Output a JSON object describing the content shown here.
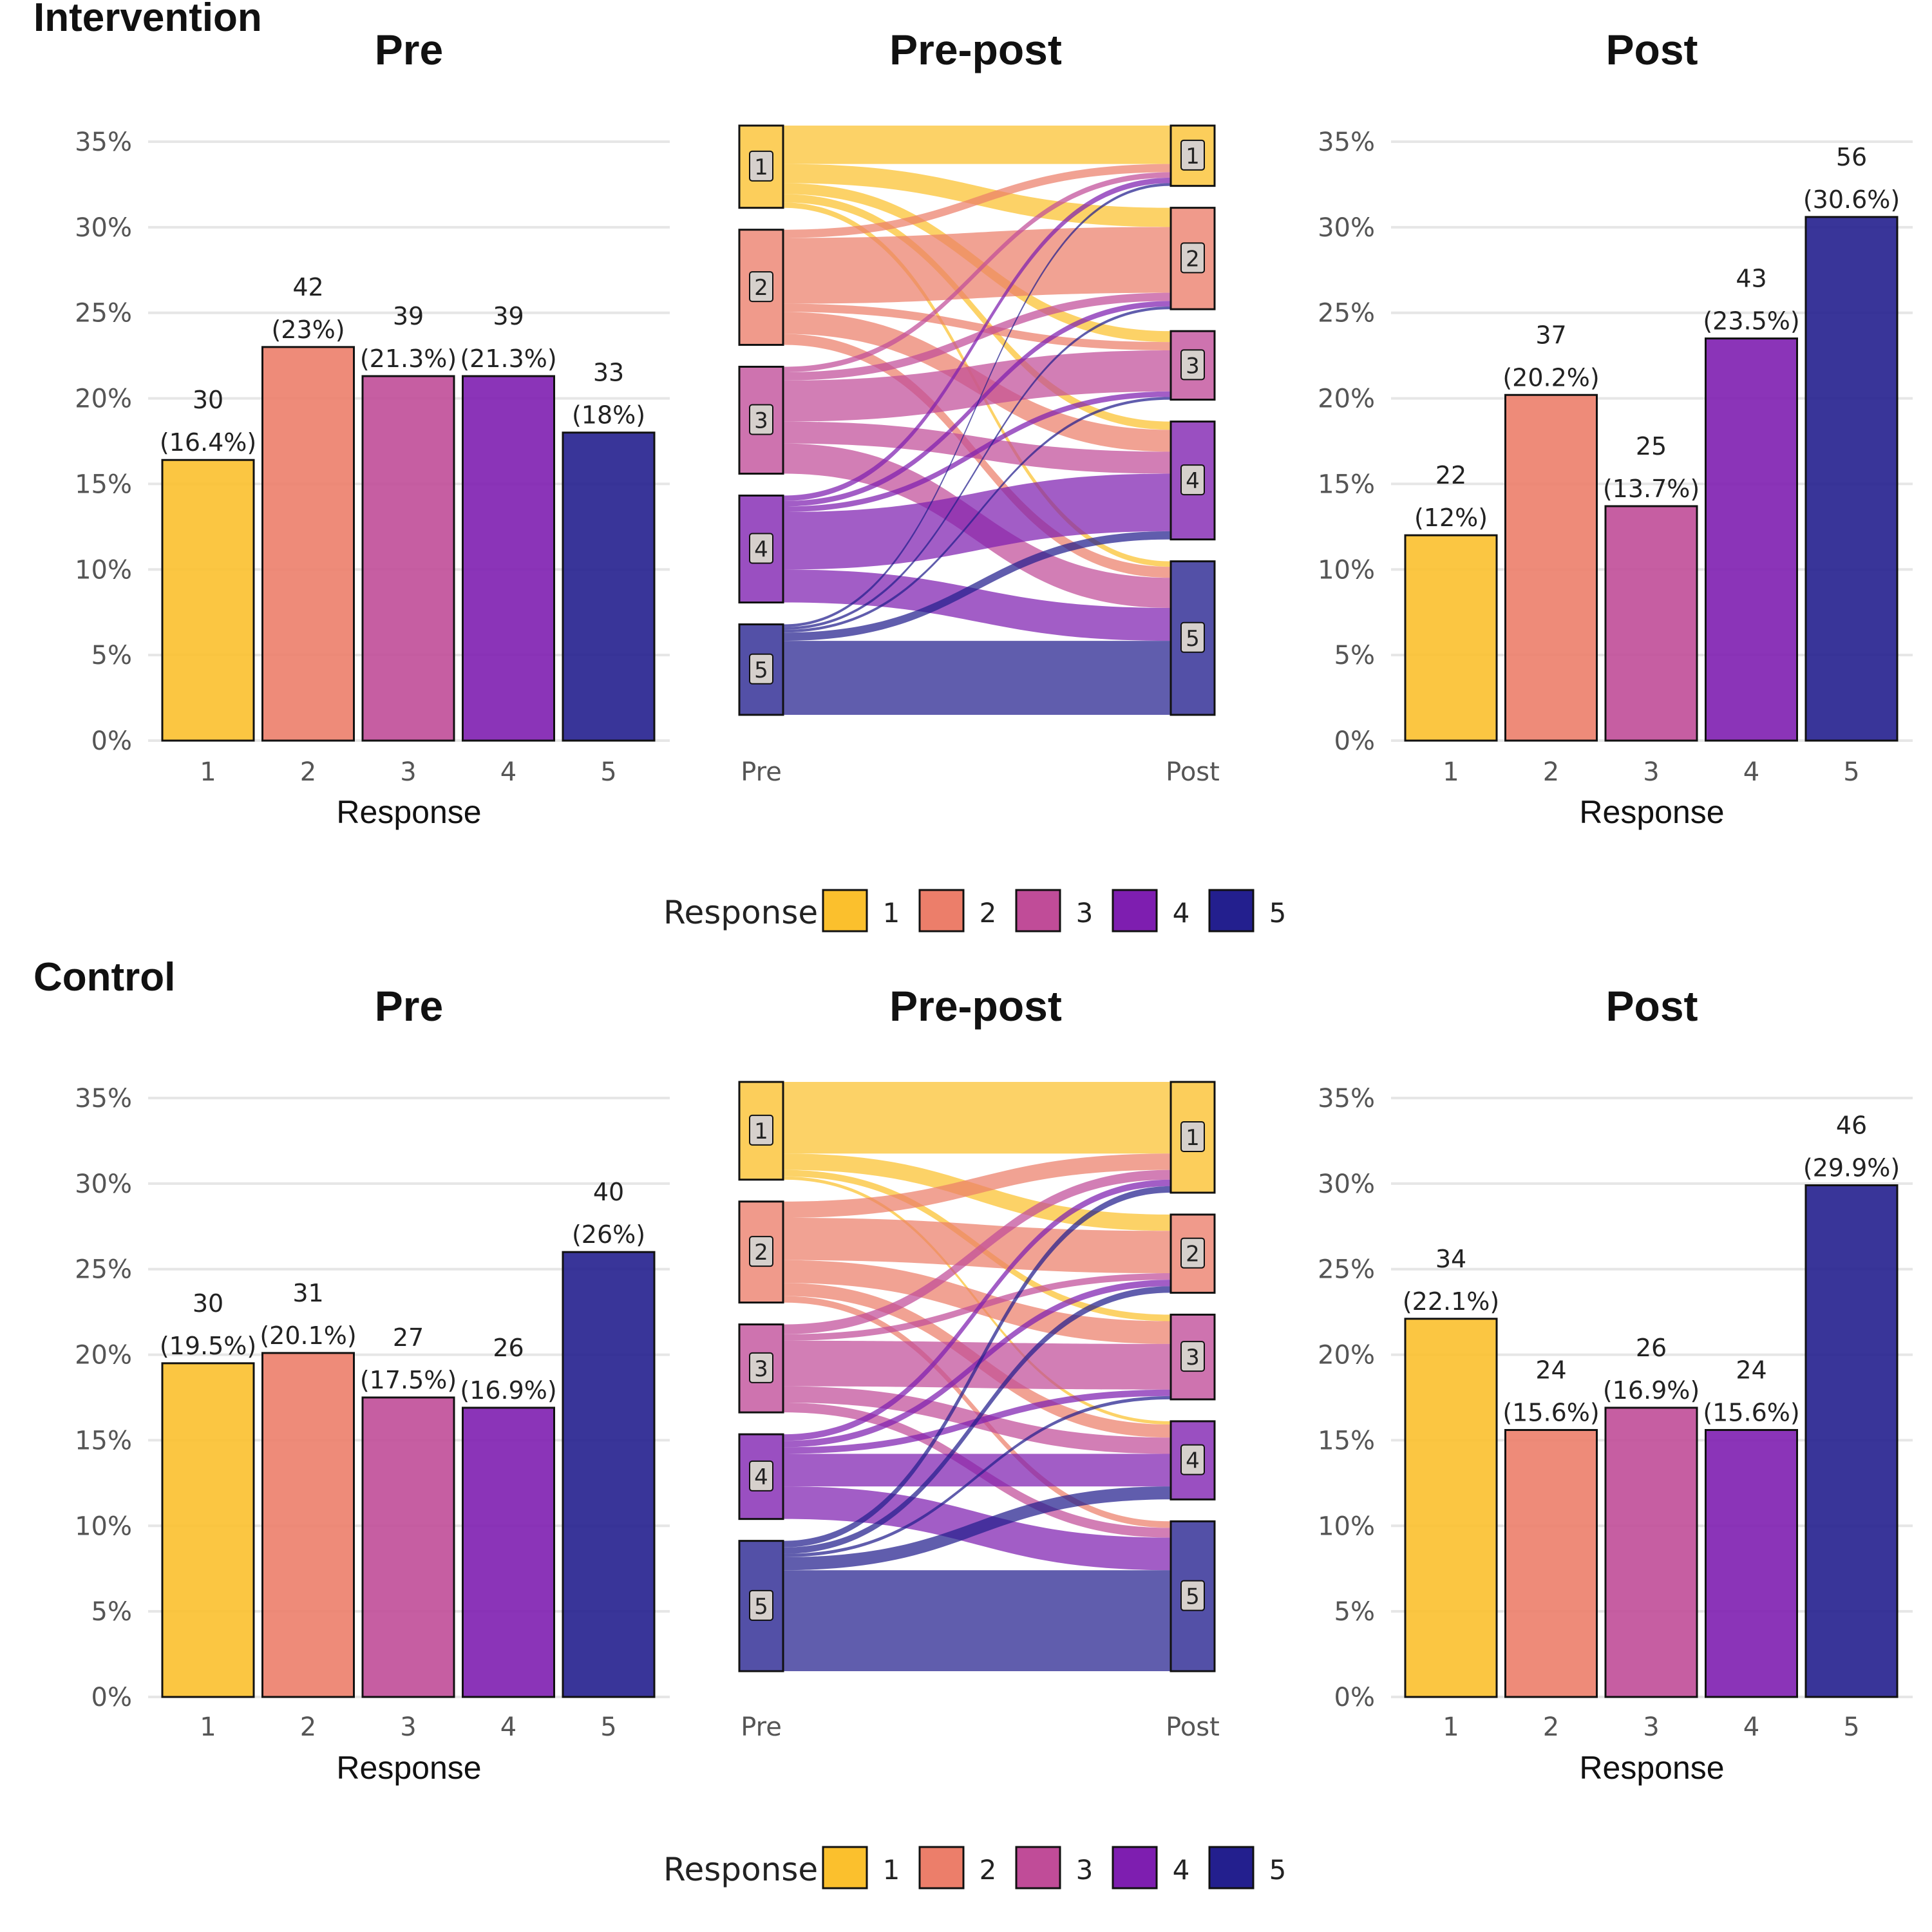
{
  "colors": {
    "1": "#FBC02D",
    "2": "#EC7E6A",
    "3": "#C04C98",
    "4": "#7E1EB0",
    "5": "#231F8E"
  },
  "chart_data": [
    {
      "type": "bar",
      "group": "Intervention",
      "title": "Pre",
      "xlabel": "Response",
      "ylabel": "",
      "categories": [
        "1",
        "2",
        "3",
        "4",
        "5"
      ],
      "values": [
        16.4,
        23.0,
        21.3,
        21.3,
        18.0
      ],
      "labels": [
        [
          "30",
          "(16.4%)"
        ],
        [
          "42",
          "(23%)"
        ],
        [
          "39",
          "(21.3%)"
        ],
        [
          "39",
          "(21.3%)"
        ],
        [
          "33",
          "(18%)"
        ]
      ],
      "yticks": [
        "0%",
        "5%",
        "10%",
        "15%",
        "20%",
        "25%",
        "30%",
        "35%"
      ],
      "ylim": [
        0,
        35
      ]
    },
    {
      "type": "sankey",
      "group": "Intervention",
      "title": "Pre-post",
      "x_labels": [
        "Pre",
        "Post"
      ],
      "nodes": [
        "1",
        "2",
        "3",
        "4",
        "5"
      ],
      "pre_counts": [
        30,
        42,
        39,
        39,
        33
      ],
      "post_counts": [
        22,
        37,
        25,
        43,
        56
      ],
      "flows": [
        [
          14,
          7,
          4,
          3,
          2
        ],
        [
          3,
          24,
          3,
          8,
          4
        ],
        [
          2,
          3,
          15,
          8,
          11
        ],
        [
          2,
          2,
          2,
          21,
          12
        ],
        [
          1,
          1,
          1,
          3,
          27
        ]
      ]
    },
    {
      "type": "bar",
      "group": "Intervention",
      "title": "Post",
      "xlabel": "Response",
      "ylabel": "",
      "categories": [
        "1",
        "2",
        "3",
        "4",
        "5"
      ],
      "values": [
        12.0,
        20.2,
        13.7,
        23.5,
        30.6
      ],
      "labels": [
        [
          "22",
          "(12%)"
        ],
        [
          "37",
          "(20.2%)"
        ],
        [
          "25",
          "(13.7%)"
        ],
        [
          "43",
          "(23.5%)"
        ],
        [
          "56",
          "(30.6%)"
        ]
      ],
      "yticks": [
        "0%",
        "5%",
        "10%",
        "15%",
        "20%",
        "25%",
        "30%",
        "35%"
      ],
      "ylim": [
        0,
        35
      ]
    },
    {
      "type": "bar",
      "group": "Control",
      "title": "Pre",
      "xlabel": "Response",
      "ylabel": "",
      "categories": [
        "1",
        "2",
        "3",
        "4",
        "5"
      ],
      "values": [
        19.5,
        20.1,
        17.5,
        16.9,
        26.0
      ],
      "labels": [
        [
          "30",
          "(19.5%)"
        ],
        [
          "31",
          "(20.1%)"
        ],
        [
          "27",
          "(17.5%)"
        ],
        [
          "26",
          "(16.9%)"
        ],
        [
          "40",
          "(26%)"
        ]
      ],
      "yticks": [
        "0%",
        "5%",
        "10%",
        "15%",
        "20%",
        "25%",
        "30%",
        "35%"
      ],
      "ylim": [
        0,
        35
      ]
    },
    {
      "type": "sankey",
      "group": "Control",
      "title": "Pre-post",
      "x_labels": [
        "Pre",
        "Post"
      ],
      "nodes": [
        "1",
        "2",
        "3",
        "4",
        "5"
      ],
      "pre_counts": [
        30,
        31,
        27,
        26,
        40
      ],
      "post_counts": [
        34,
        24,
        26,
        24,
        46
      ],
      "flows": [
        [
          22,
          5,
          2,
          1,
          0
        ],
        [
          5,
          13,
          7,
          4,
          2
        ],
        [
          3,
          2,
          14,
          5,
          3
        ],
        [
          2,
          2,
          2,
          10,
          10
        ],
        [
          2,
          2,
          1,
          4,
          31
        ]
      ]
    },
    {
      "type": "bar",
      "group": "Control",
      "title": "Post",
      "xlabel": "Response",
      "ylabel": "",
      "categories": [
        "1",
        "2",
        "3",
        "4",
        "5"
      ],
      "values": [
        22.1,
        15.6,
        16.9,
        15.6,
        29.9
      ],
      "labels": [
        [
          "34",
          "(22.1%)"
        ],
        [
          "24",
          "(15.6%)"
        ],
        [
          "26",
          "(16.9%)"
        ],
        [
          "24",
          "(15.6%)"
        ],
        [
          "46",
          "(29.9%)"
        ]
      ],
      "yticks": [
        "0%",
        "5%",
        "10%",
        "15%",
        "20%",
        "25%",
        "30%",
        "35%"
      ],
      "ylim": [
        0,
        35
      ]
    }
  ],
  "legends": [
    {
      "title": "Response",
      "items": [
        "1",
        "2",
        "3",
        "4",
        "5"
      ]
    },
    {
      "title": "Response",
      "items": [
        "1",
        "2",
        "3",
        "4",
        "5"
      ]
    }
  ]
}
